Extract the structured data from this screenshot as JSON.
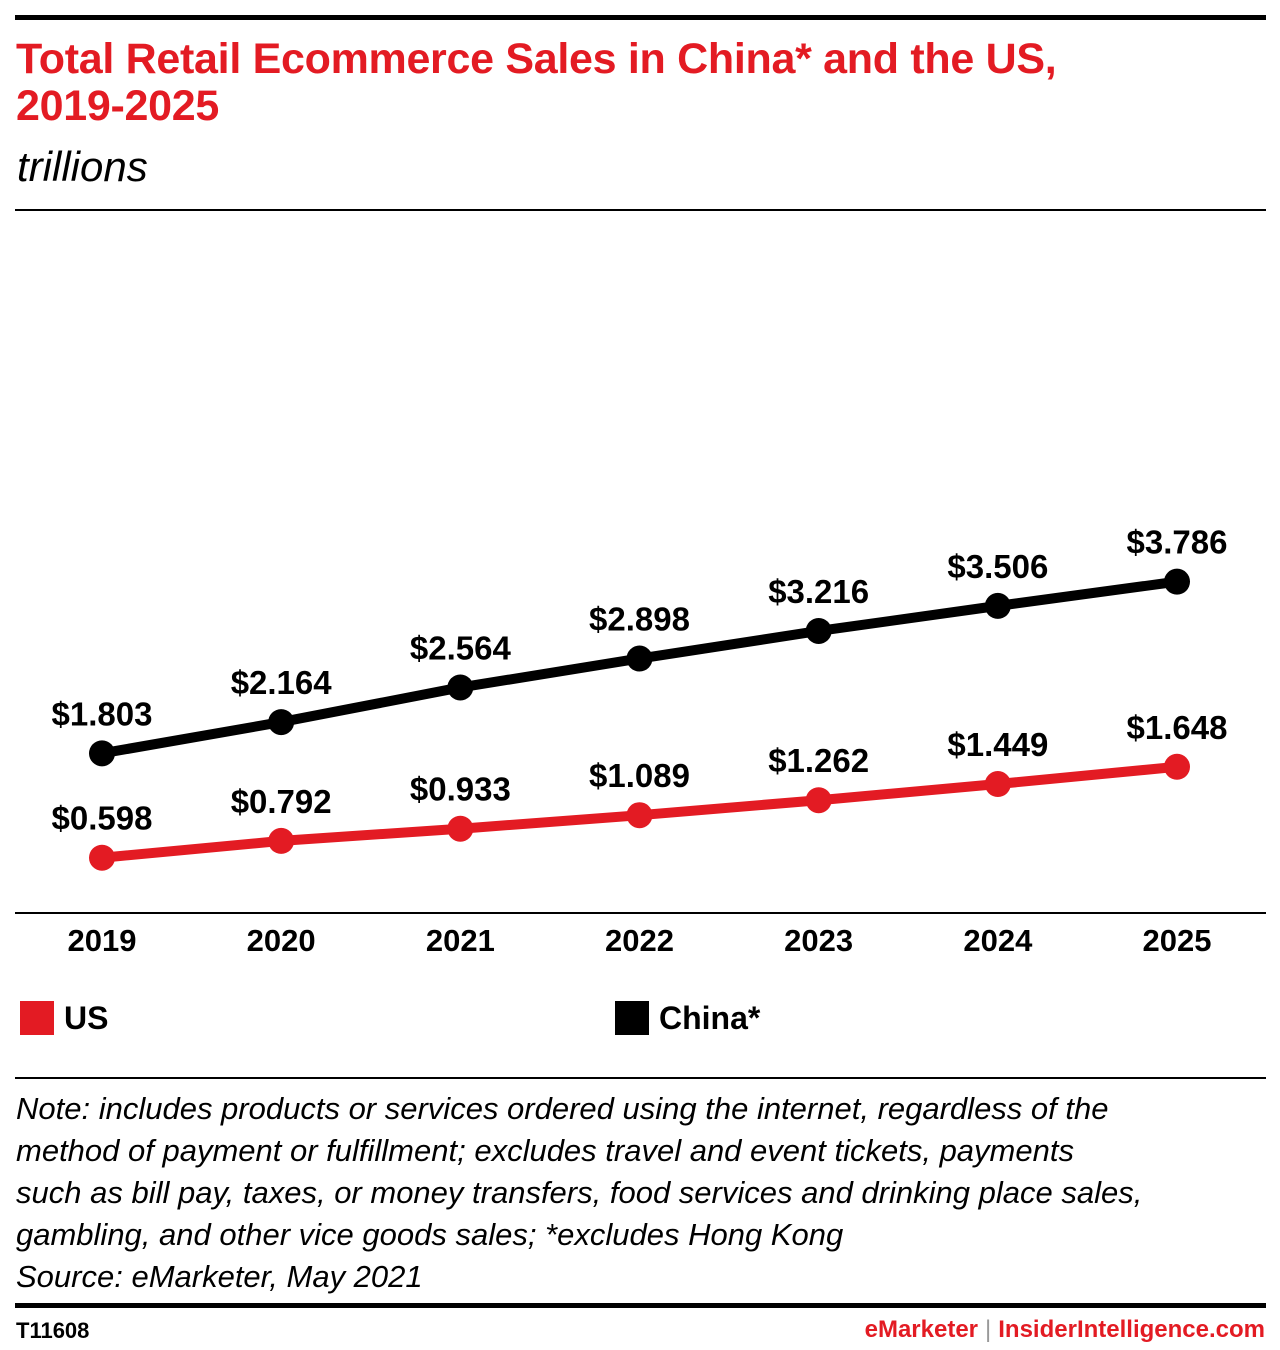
{
  "title_line1": "Total Retail Ecommerce Sales in China* and the US,",
  "title_line2": "2019-2025",
  "subtitle": "trillions",
  "chart_data": {
    "type": "line",
    "categories": [
      "2019",
      "2020",
      "2021",
      "2022",
      "2023",
      "2024",
      "2025"
    ],
    "series": [
      {
        "name": "US",
        "color": "#e31b23",
        "values": [
          0.598,
          0.792,
          0.933,
          1.089,
          1.262,
          1.449,
          1.648
        ],
        "labels": [
          "$0.598",
          "$0.792",
          "$0.933",
          "$1.089",
          "$1.262",
          "$1.449",
          "$1.648"
        ]
      },
      {
        "name": "China*",
        "color": "#000000",
        "values": [
          1.803,
          2.164,
          2.564,
          2.898,
          3.216,
          3.506,
          3.786
        ],
        "labels": [
          "$1.803",
          "$2.164",
          "$2.564",
          "$2.898",
          "$3.216",
          "$3.506",
          "$3.786"
        ]
      }
    ],
    "title": "Total Retail Ecommerce Sales in China* and the US, 2019-2025",
    "ylabel": "",
    "xlabel": "",
    "grid": false,
    "legend_position": "bottom"
  },
  "legend": {
    "us_label": "US",
    "china_label": "China*"
  },
  "note": {
    "line1": "Note: includes products or services ordered using the internet, regardless of the",
    "line2": "method of payment or fulfillment; excludes travel and event tickets, payments",
    "line3": "such as bill pay, taxes, or money transfers, food services and drinking place sales,",
    "line4": "gambling, and other vice goods sales; *excludes Hong Kong",
    "source": "Source: eMarketer, May 2021"
  },
  "footer": {
    "chart_id": "T11608",
    "brand1": "eMarketer",
    "separator": "|",
    "brand2": "InsiderIntelligence.com"
  }
}
